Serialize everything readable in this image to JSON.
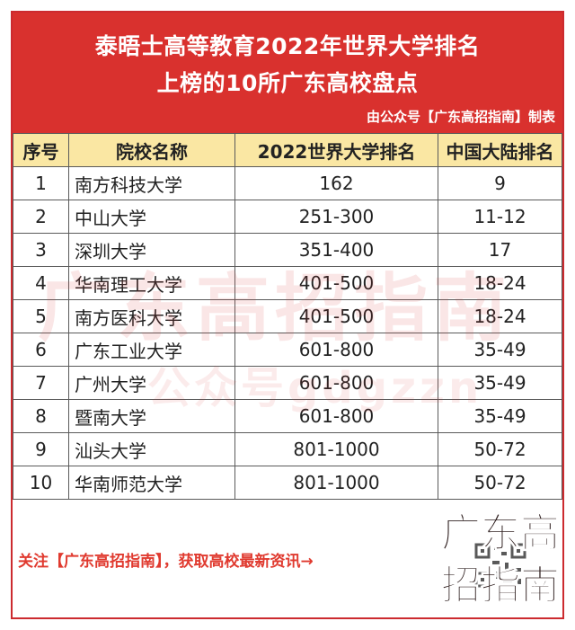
{
  "header": {
    "title_line1": "泰晤士高等教育2022年世界大学排名",
    "title_line2": "上榜的10所广东高校盘点",
    "credit": "由公众号【广东高招指南】制表"
  },
  "table": {
    "columns": [
      "序号",
      "院校名称",
      "2022世界大学排名",
      "中国大陆排名"
    ],
    "rows": [
      {
        "idx": "1",
        "name": "南方科技大学",
        "world": "162",
        "cn": "9"
      },
      {
        "idx": "2",
        "name": "中山大学",
        "world": "251-300",
        "cn": "11-12"
      },
      {
        "idx": "3",
        "name": "深圳大学",
        "world": "351-400",
        "cn": "17"
      },
      {
        "idx": "4",
        "name": "华南理工大学",
        "world": "401-500",
        "cn": "18-24"
      },
      {
        "idx": "5",
        "name": "南方医科大学",
        "world": "401-500",
        "cn": "18-24"
      },
      {
        "idx": "6",
        "name": "广东工业大学",
        "world": "601-800",
        "cn": "35-49"
      },
      {
        "idx": "7",
        "name": "广州大学",
        "world": "601-800",
        "cn": "35-49"
      },
      {
        "idx": "8",
        "name": "暨南大学",
        "world": "601-800",
        "cn": "35-49"
      },
      {
        "idx": "9",
        "name": "汕头大学",
        "world": "801-1000",
        "cn": "50-72"
      },
      {
        "idx": "10",
        "name": "华南师范大学",
        "world": "801-1000",
        "cn": "50-72"
      }
    ]
  },
  "watermark": {
    "line1": "广东高招指南",
    "line2": "公众号gdgzzn"
  },
  "footer": {
    "note": "关注【广东高招指南】，获取高校最新资讯→"
  },
  "logo": {
    "line1": "广东高",
    "line2": "招指南"
  },
  "colors": {
    "header_bg": "#d9312e",
    "header_row_bg": "#fae7a3",
    "frame_border": "#cc2b2f",
    "footer_text": "#e03a2f"
  }
}
